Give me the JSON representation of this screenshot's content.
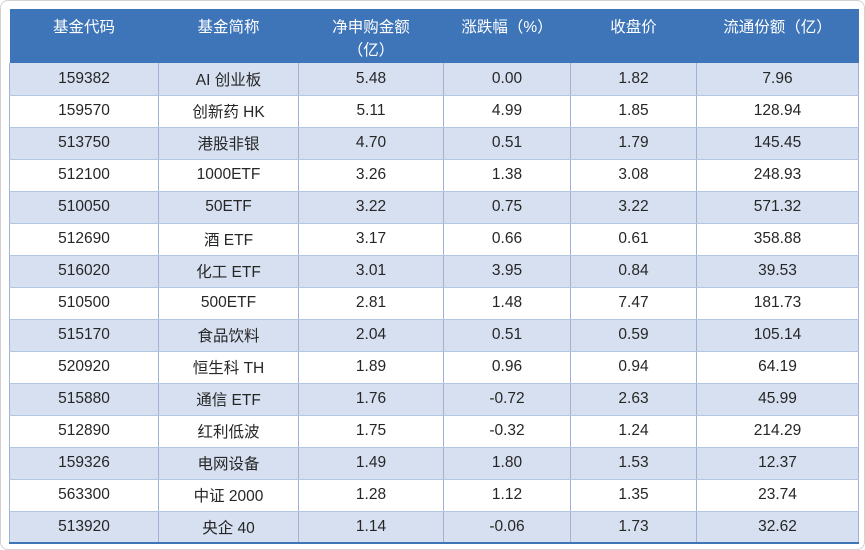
{
  "chart_data": {
    "type": "table",
    "title": "",
    "columns": [
      {
        "key": "code",
        "label": "基金代码"
      },
      {
        "key": "name",
        "label": "基金简称"
      },
      {
        "key": "net_purchase",
        "label": "净申购金额",
        "label2": "（亿）"
      },
      {
        "key": "change_pct",
        "label": "涨跌幅（%）"
      },
      {
        "key": "close_price",
        "label": "收盘价"
      },
      {
        "key": "float_shares",
        "label": "流通份额（亿）"
      }
    ],
    "rows": [
      [
        "159382",
        "AI 创业板",
        "5.48",
        "0.00",
        "1.82",
        "7.96"
      ],
      [
        "159570",
        "创新药 HK",
        "5.11",
        "4.99",
        "1.85",
        "128.94"
      ],
      [
        "513750",
        "港股非银",
        "4.70",
        "0.51",
        "1.79",
        "145.45"
      ],
      [
        "512100",
        "1000ETF",
        "3.26",
        "1.38",
        "3.08",
        "248.93"
      ],
      [
        "510050",
        "50ETF",
        "3.22",
        "0.75",
        "3.22",
        "571.32"
      ],
      [
        "512690",
        "酒 ETF",
        "3.17",
        "0.66",
        "0.61",
        "358.88"
      ],
      [
        "516020",
        "化工 ETF",
        "3.01",
        "3.95",
        "0.84",
        "39.53"
      ],
      [
        "510500",
        "500ETF",
        "2.81",
        "1.48",
        "7.47",
        "181.73"
      ],
      [
        "515170",
        "食品饮料",
        "2.04",
        "0.51",
        "0.59",
        "105.14"
      ],
      [
        "520920",
        "恒生科 TH",
        "1.89",
        "0.96",
        "0.94",
        "64.19"
      ],
      [
        "515880",
        "通信 ETF",
        "1.76",
        "-0.72",
        "2.63",
        "45.99"
      ],
      [
        "512890",
        "红利低波",
        "1.75",
        "-0.32",
        "1.24",
        "214.29"
      ],
      [
        "159326",
        "电网设备",
        "1.49",
        "1.80",
        "1.53",
        "12.37"
      ],
      [
        "563300",
        "中证 2000",
        "1.28",
        "1.12",
        "1.35",
        "23.74"
      ],
      [
        "513920",
        "央企 40",
        "1.14",
        "-0.06",
        "1.73",
        "32.62"
      ]
    ]
  },
  "colors": {
    "header_bg": "#3e74b8",
    "header_text": "#ffffff",
    "row_band": "#d6e0f0",
    "row_plain": "#ffffff",
    "grid_line": "#9fb4d4",
    "bottom_border": "#3e74b8",
    "cell_text": "#262626",
    "card_border": "#d2d2d2"
  }
}
